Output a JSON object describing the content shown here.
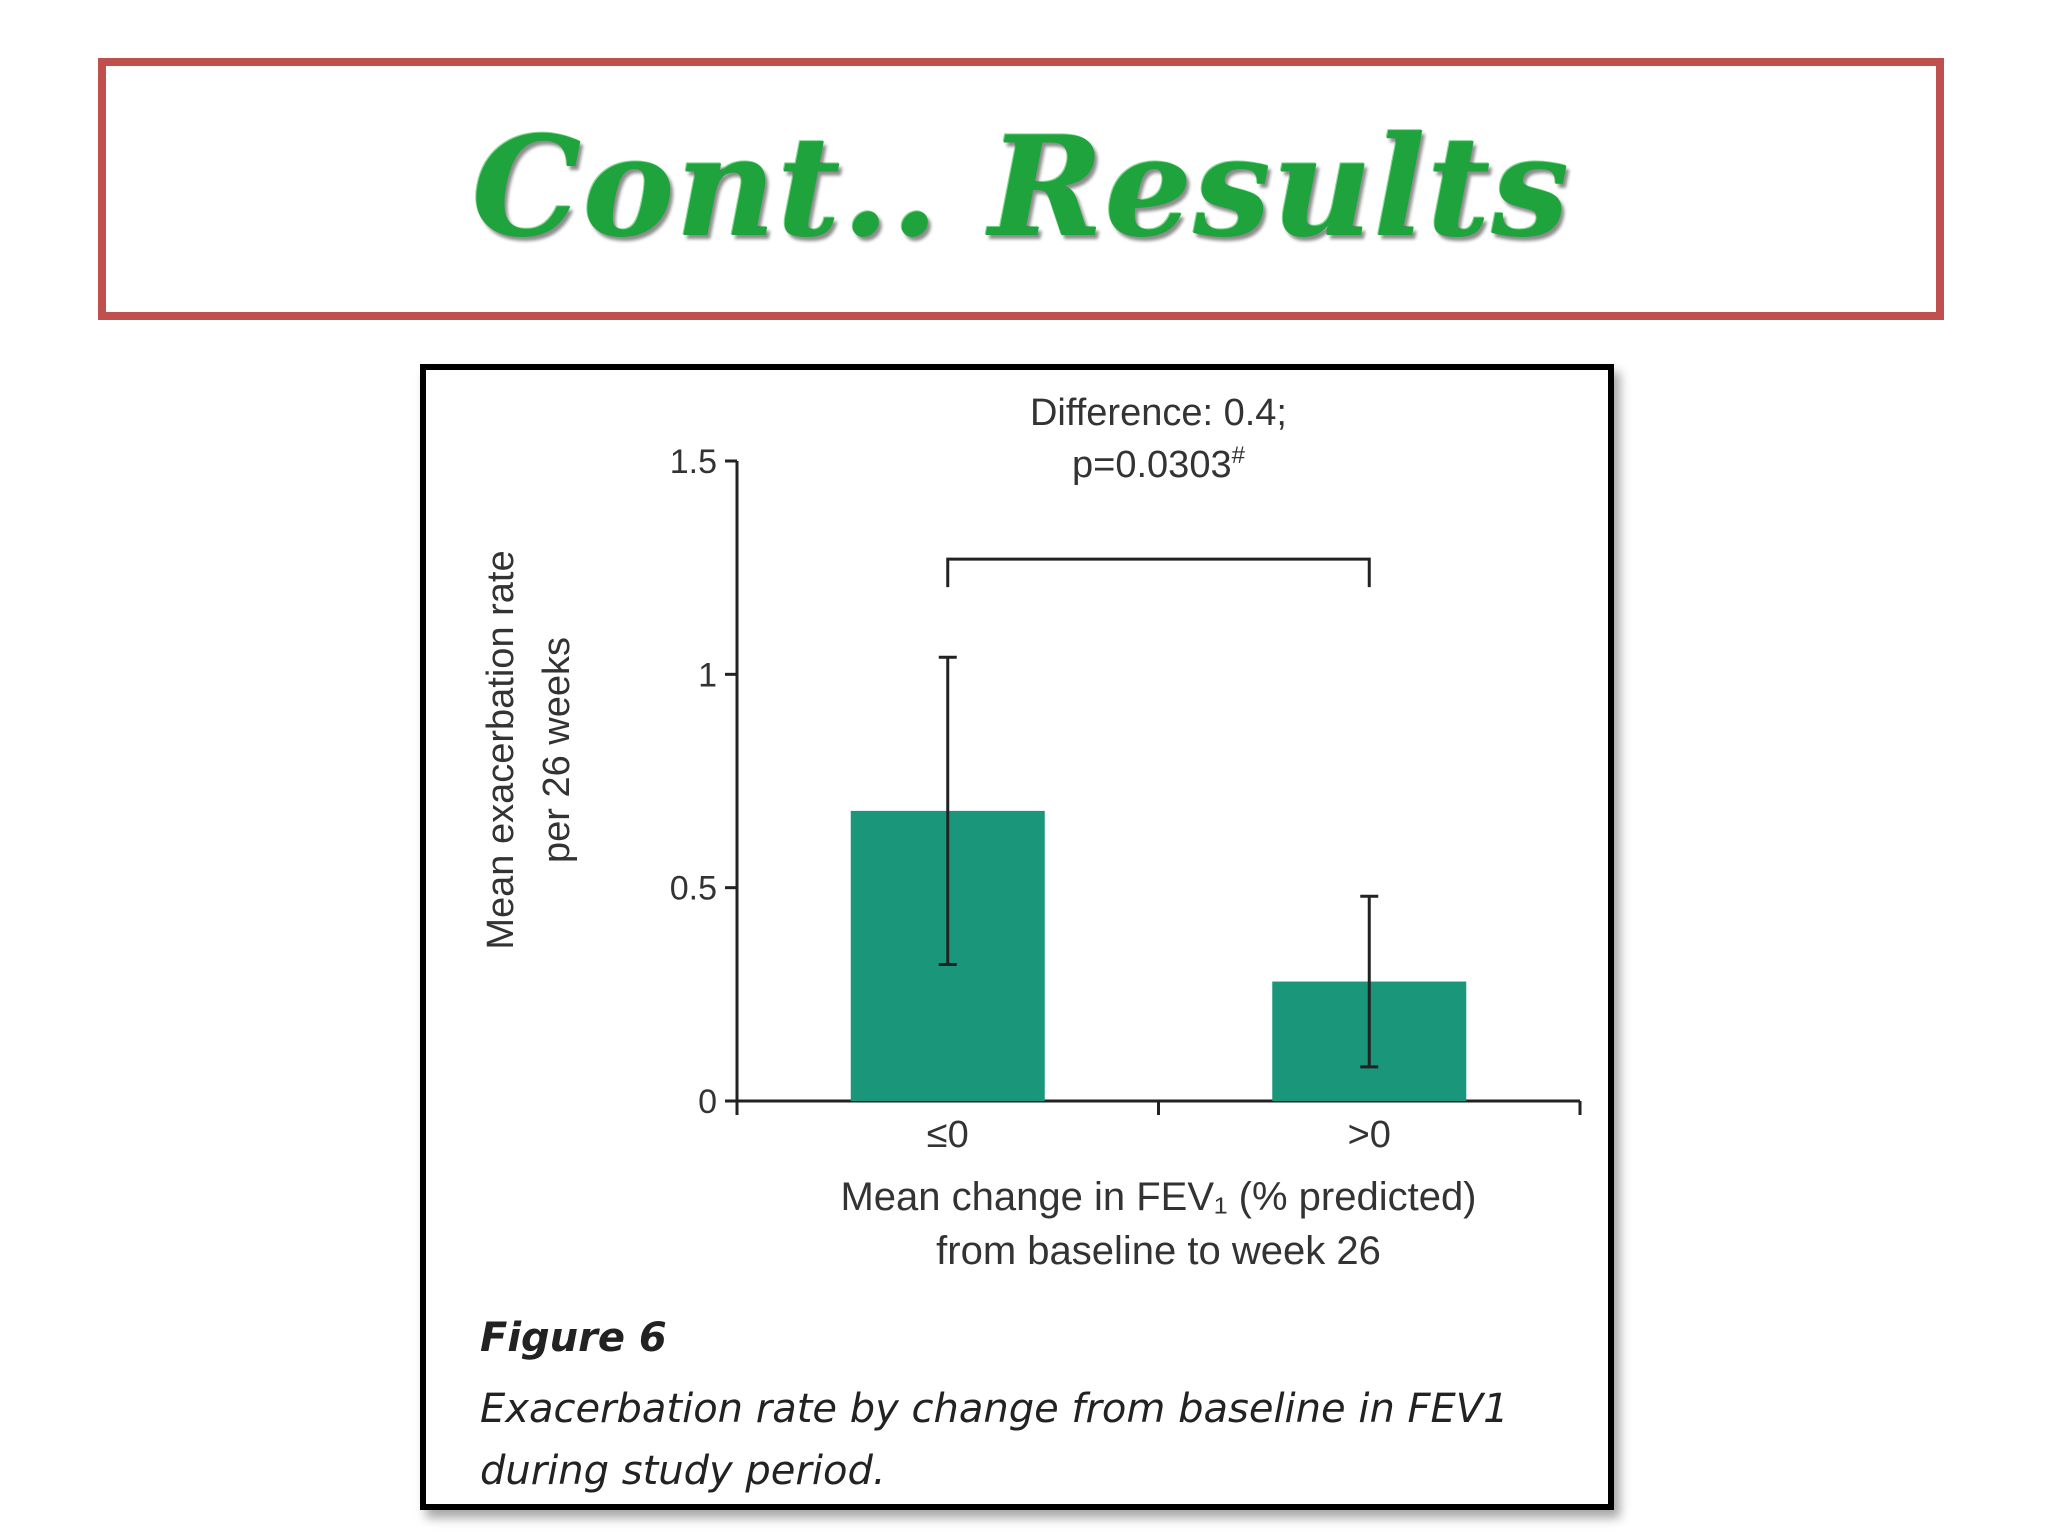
{
  "slide": {
    "title": "Cont.. Results",
    "colors": {
      "title_border": "#c0504d",
      "title_text": "#1fa33d",
      "bar_fill": "#1a977b"
    }
  },
  "figure": {
    "label": "Figure 6",
    "caption": "Exacerbation rate by change from baseline in FEV1 during study period."
  },
  "chart_data": {
    "type": "bar",
    "categories": [
      "≤0",
      ">0"
    ],
    "values": [
      0.68,
      0.28
    ],
    "error_low": [
      0.32,
      0.08
    ],
    "error_high": [
      1.04,
      0.48
    ],
    "ylim": [
      0,
      1.5
    ],
    "yticks": [
      0,
      0.5,
      1,
      1.5
    ],
    "ytick_labels": [
      "0",
      "0.5",
      "1",
      "1.5"
    ],
    "ylabel_line1": "Mean exacerbation rate",
    "ylabel_line2": "per 26 weeks",
    "xlabel_line1": "Mean change in FEV₁ (% predicted)",
    "xlabel_line2": "from baseline to week 26",
    "annotation_line1": "Difference: 0.4;",
    "annotation_line2": "p=0.0303",
    "annotation_sup": "#",
    "comparison_bracket_y": 1.27,
    "grid": false,
    "legend": "none"
  }
}
